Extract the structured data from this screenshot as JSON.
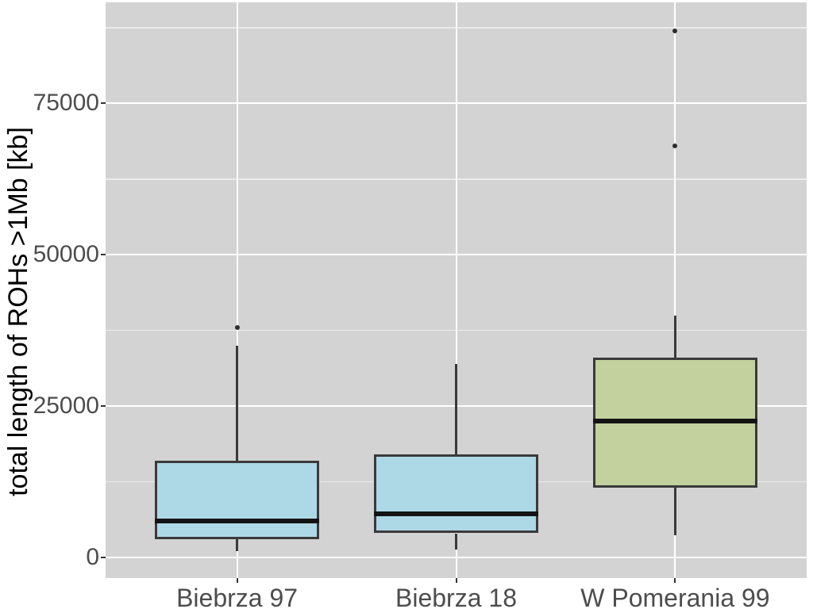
{
  "chart_data": {
    "type": "boxplot",
    "title": "",
    "xlabel": "",
    "ylabel": "total length of ROHs >1Mb [kb]",
    "categories": [
      "Biebrza 97",
      "Biebrza 18",
      "W Pomerania 99"
    ],
    "y_ticks": {
      "values": [
        0,
        25000,
        50000,
        75000
      ],
      "labels": [
        "0",
        "25000",
        "50000",
        "75000"
      ]
    },
    "y_minor_ticks": [
      12500,
      37500,
      62500,
      87500
    ],
    "ylim": [
      -3400,
      91700
    ],
    "legend": "none",
    "grid": {
      "horizontal_major": true,
      "horizontal_minor": true,
      "vertical_major_at_categories": true
    },
    "series": [
      {
        "name": "Biebrza 97",
        "fill": "#ADD8E6",
        "whisker_low": 1000,
        "q1": 3000,
        "median": 6000,
        "q3": 16000,
        "whisker_high": 35000,
        "outliers": [
          38000
        ]
      },
      {
        "name": "Biebrza 18",
        "fill": "#ADD8E6",
        "whisker_low": 1300,
        "q1": 4000,
        "median": 7200,
        "q3": 17000,
        "whisker_high": 32000,
        "outliers": []
      },
      {
        "name": "W Pomerania 99",
        "fill": "#C2D19D",
        "whisker_low": 3700,
        "q1": 11500,
        "median": 22500,
        "q3": 33000,
        "whisker_high": 40000,
        "outliers": [
          68000,
          87000
        ]
      }
    ],
    "style": {
      "figure_bg": "#FFFFFF",
      "panel_bg": "#D3D3D3",
      "grid_major_color": "#FFFFFF",
      "grid_minor_color": "rgba(255,255,255,0.55)",
      "box_border_color": "#3A3A3A",
      "whisker_color": "#3A3A3A",
      "median_color": "#141414",
      "outlier_color": "#2E2E2E",
      "tick_label_color": "#4D4D4D",
      "axis_title_color": "#000000"
    }
  }
}
